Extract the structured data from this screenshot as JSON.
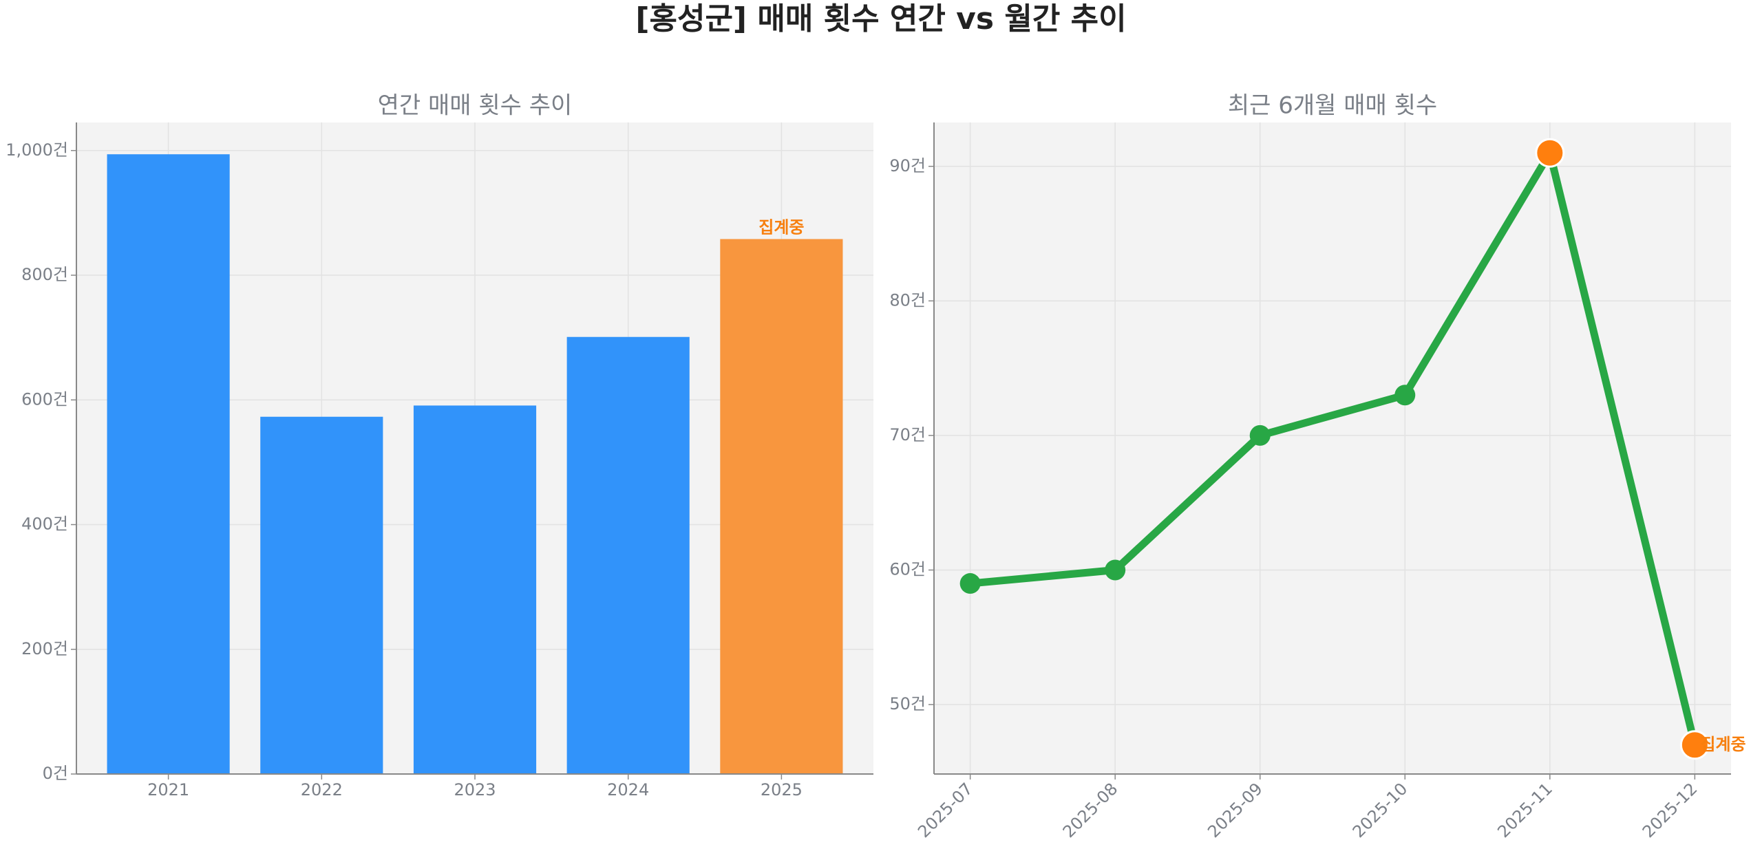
{
  "title": "[홍성군] 매매 횟수 연간 vs 월간 추이",
  "chart_data": [
    {
      "type": "bar",
      "title": "연간 매매 횟수 추이",
      "categories": [
        "2021",
        "2022",
        "2023",
        "2024",
        "2025"
      ],
      "values": [
        994,
        573,
        591,
        701,
        858
      ],
      "colors": [
        "#3193fa",
        "#3193fa",
        "#3193fa",
        "#3193fa",
        "#f8963e"
      ],
      "ylim": [
        0,
        1045
      ],
      "yticks": [
        {
          "value": 0,
          "label": "0건"
        },
        {
          "value": 200,
          "label": "200건"
        },
        {
          "value": 400,
          "label": "400건"
        },
        {
          "value": 600,
          "label": "600건"
        },
        {
          "value": 800,
          "label": "800건"
        },
        {
          "value": 1000,
          "label": "1,000건"
        }
      ],
      "grid": true,
      "annotations": [
        {
          "text": "집계중",
          "index": 4,
          "color": "#f77f0e"
        }
      ]
    },
    {
      "type": "line",
      "title": "최근 6개월 매매 횟수",
      "categories": [
        "2025-07",
        "2025-08",
        "2025-09",
        "2025-10",
        "2025-11",
        "2025-12"
      ],
      "values": [
        59,
        60,
        70,
        73,
        91,
        47
      ],
      "color": "#28a745",
      "marker_colors": [
        "#28a745",
        "#28a745",
        "#28a745",
        "#28a745",
        "#ff7f0e",
        "#ff7f0e"
      ],
      "ylim": [
        44.84,
        93.26
      ],
      "yticks": [
        {
          "value": 50,
          "label": "50건"
        },
        {
          "value": 60,
          "label": "60건"
        },
        {
          "value": 70,
          "label": "70건"
        },
        {
          "value": 80,
          "label": "80건"
        },
        {
          "value": 90,
          "label": "90건"
        }
      ],
      "grid": true,
      "annotations": [
        {
          "text": "집계중",
          "index": 5,
          "color": "#f77f0e"
        }
      ]
    }
  ]
}
